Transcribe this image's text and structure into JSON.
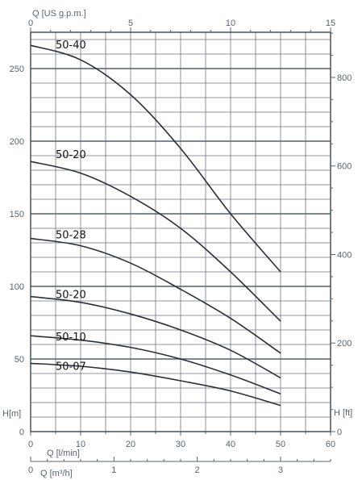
{
  "chart_data": {
    "type": "line",
    "grid": true,
    "x": {
      "unit_label": "Q [l/min]",
      "range": [
        0,
        60
      ],
      "ticks": [
        "0",
        "10",
        "20",
        "30",
        "40",
        "50",
        "60"
      ]
    },
    "x_top": {
      "unit_label": "Q [US g.p.m.]",
      "range": [
        0,
        15
      ],
      "ticks": [
        "0",
        "5",
        "10",
        "15"
      ]
    },
    "x_bottom2": {
      "unit_label": "Q [m³/h]",
      "range": [
        0,
        3.6
      ],
      "ticks": [
        "0",
        "1",
        "2",
        "3"
      ]
    },
    "y": {
      "unit_label": "H[m]",
      "range": [
        0,
        275
      ],
      "ticks": [
        "0",
        "50",
        "100",
        "150",
        "200",
        "250"
      ]
    },
    "y_right": {
      "unit_label": "H [ft]",
      "range": [
        0,
        902
      ],
      "ticks": [
        "0",
        "200",
        "400",
        "600",
        "800"
      ]
    },
    "series": [
      {
        "name": "50-40",
        "x": [
          0,
          10,
          20,
          30,
          40,
          50
        ],
        "y": [
          266,
          256,
          232,
          195,
          150,
          110
        ]
      },
      {
        "name": "50-20",
        "x": [
          0,
          10,
          20,
          30,
          40,
          50
        ],
        "y": [
          186,
          178,
          162,
          140,
          110,
          76
        ]
      },
      {
        "name": "50-28",
        "x": [
          0,
          10,
          20,
          30,
          40,
          50
        ],
        "y": [
          133,
          128,
          116,
          98,
          78,
          54
        ]
      },
      {
        "name": "50-20",
        "x": [
          0,
          10,
          20,
          30,
          40,
          50
        ],
        "y": [
          93,
          89,
          81,
          70,
          56,
          37
        ]
      },
      {
        "name": "50-10",
        "x": [
          0,
          10,
          20,
          30,
          40,
          50
        ],
        "y": [
          66,
          63,
          58,
          50,
          39,
          26
        ]
      },
      {
        "name": "50-07",
        "x": [
          0,
          10,
          20,
          30,
          40,
          50
        ],
        "y": [
          47,
          45,
          41,
          35,
          28,
          18
        ]
      }
    ]
  }
}
